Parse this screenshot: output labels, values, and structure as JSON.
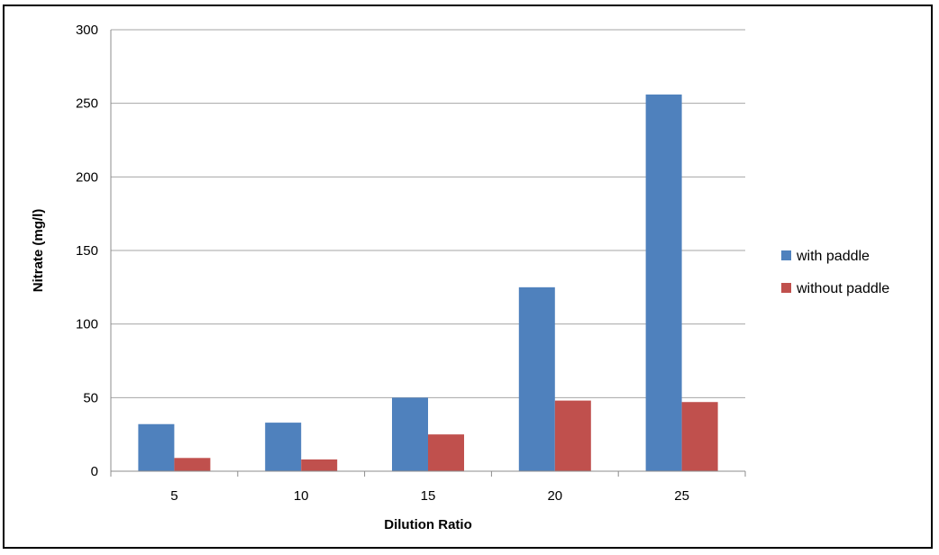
{
  "chart_data": {
    "type": "bar",
    "title": "",
    "xlabel": "Dilution Ratio",
    "ylabel": "Nitrate (mg/l)",
    "categories": [
      "5",
      "10",
      "15",
      "20",
      "25"
    ],
    "series": [
      {
        "name": "with paddle",
        "color": "#4F81BD",
        "values": [
          32,
          33,
          50,
          125,
          256
        ]
      },
      {
        "name": "without paddle",
        "color": "#C0504D",
        "values": [
          9,
          8,
          25,
          48,
          47
        ]
      }
    ],
    "ylim": [
      0,
      300
    ],
    "yticks": [
      0,
      50,
      100,
      150,
      200,
      250,
      300
    ],
    "grid": true,
    "legend_position": "right",
    "gridline_color": "#A6A6A6"
  }
}
